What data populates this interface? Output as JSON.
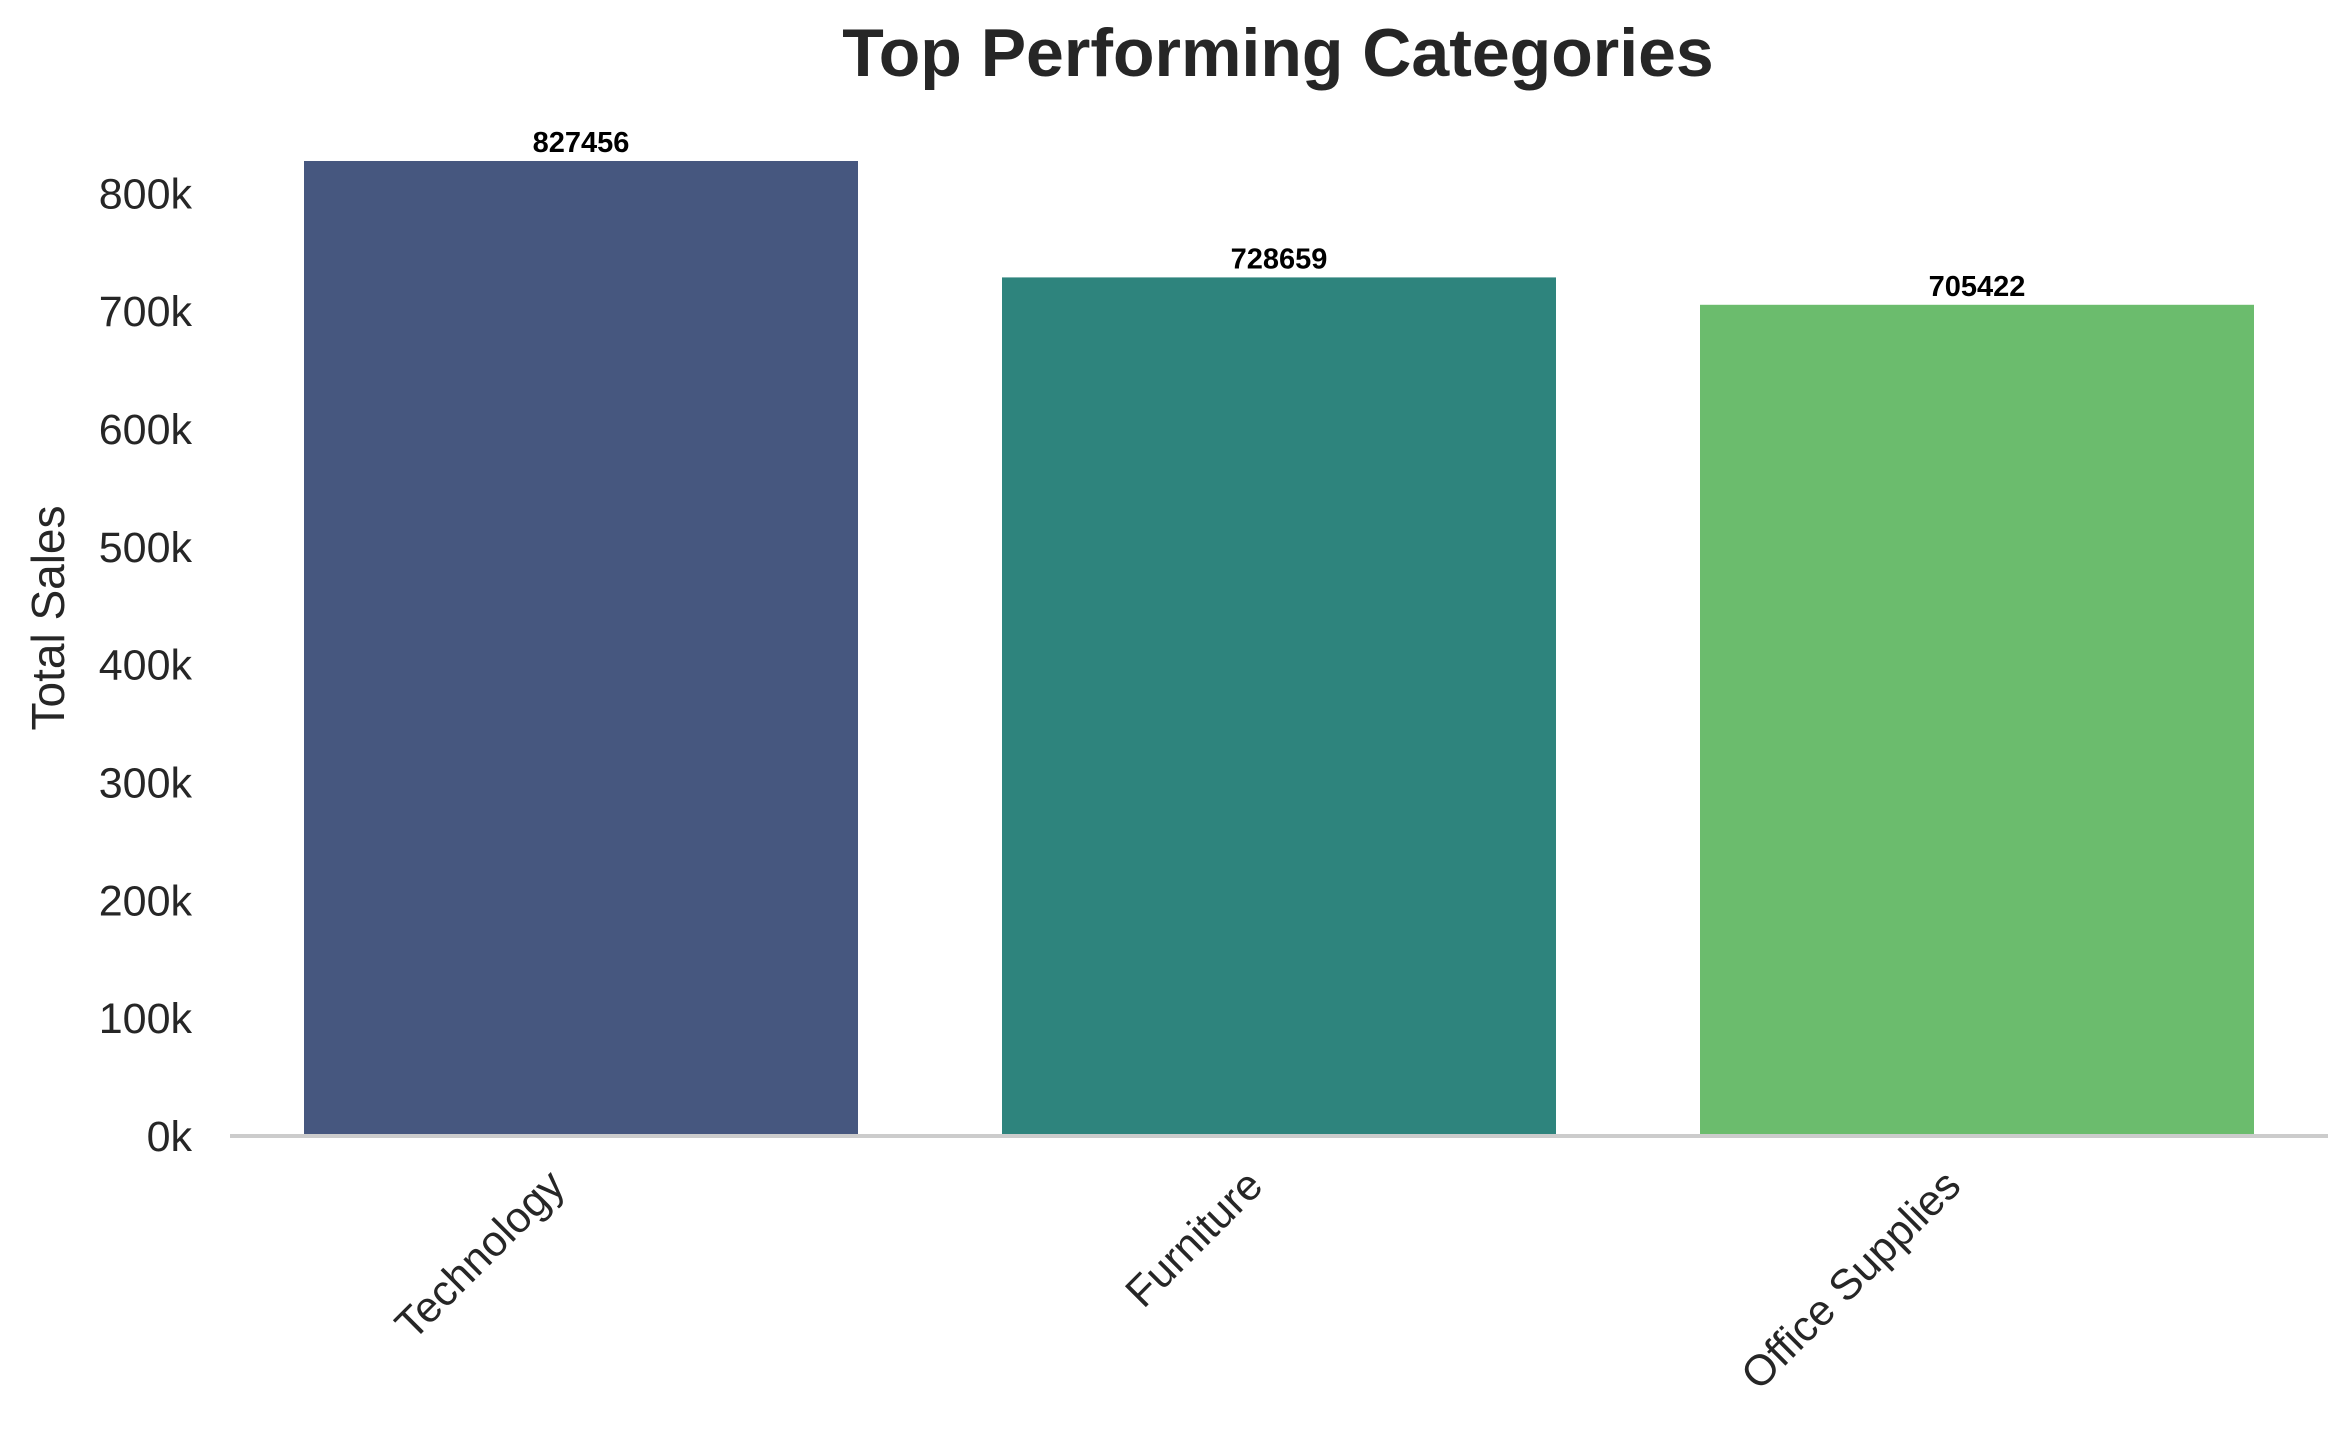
{
  "chart_data": {
    "type": "bar",
    "title": "Top Performing Categories",
    "xlabel": "",
    "ylabel": "Total Sales",
    "categories": [
      "Technology",
      "Furniture",
      "Office Supplies"
    ],
    "values": [
      827456,
      728659,
      705422
    ],
    "data_labels": [
      "827456",
      "728659",
      "705422"
    ],
    "colors": [
      "#46577f",
      "#2e847d",
      "#6bbc6d"
    ],
    "ylim": [
      0,
      830000
    ],
    "yticks": [
      0,
      100000,
      200000,
      300000,
      400000,
      500000,
      600000,
      700000,
      800000
    ],
    "ytick_labels": [
      "0k",
      "100k",
      "200k",
      "300k",
      "400k",
      "500k",
      "600k",
      "700k",
      "800k"
    ],
    "grid": false,
    "axis_color": "#cccccc"
  }
}
